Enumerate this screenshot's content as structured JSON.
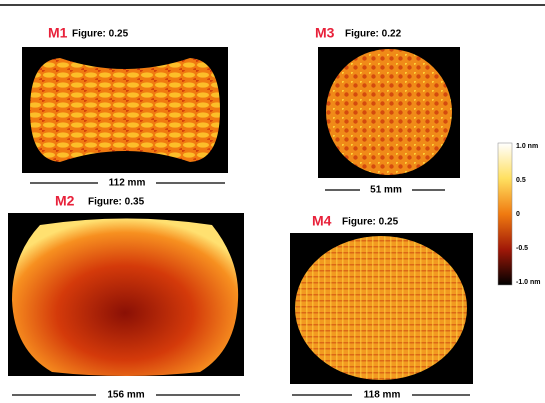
{
  "panels": [
    {
      "label": "M1",
      "figure": "Figure: 0.25",
      "dimension": "112 mm"
    },
    {
      "label": "M2",
      "figure": "Figure: 0.35",
      "dimension": "156 mm"
    },
    {
      "label": "M3",
      "figure": "Figure: 0.22",
      "dimension": "51 mm"
    },
    {
      "label": "M4",
      "figure": "Figure: 0.25",
      "dimension": "118 mm"
    }
  ],
  "colorbar": {
    "labels": [
      "1.0 nm",
      "0.5",
      "0",
      "-0.5",
      "-1.0 nm"
    ]
  }
}
